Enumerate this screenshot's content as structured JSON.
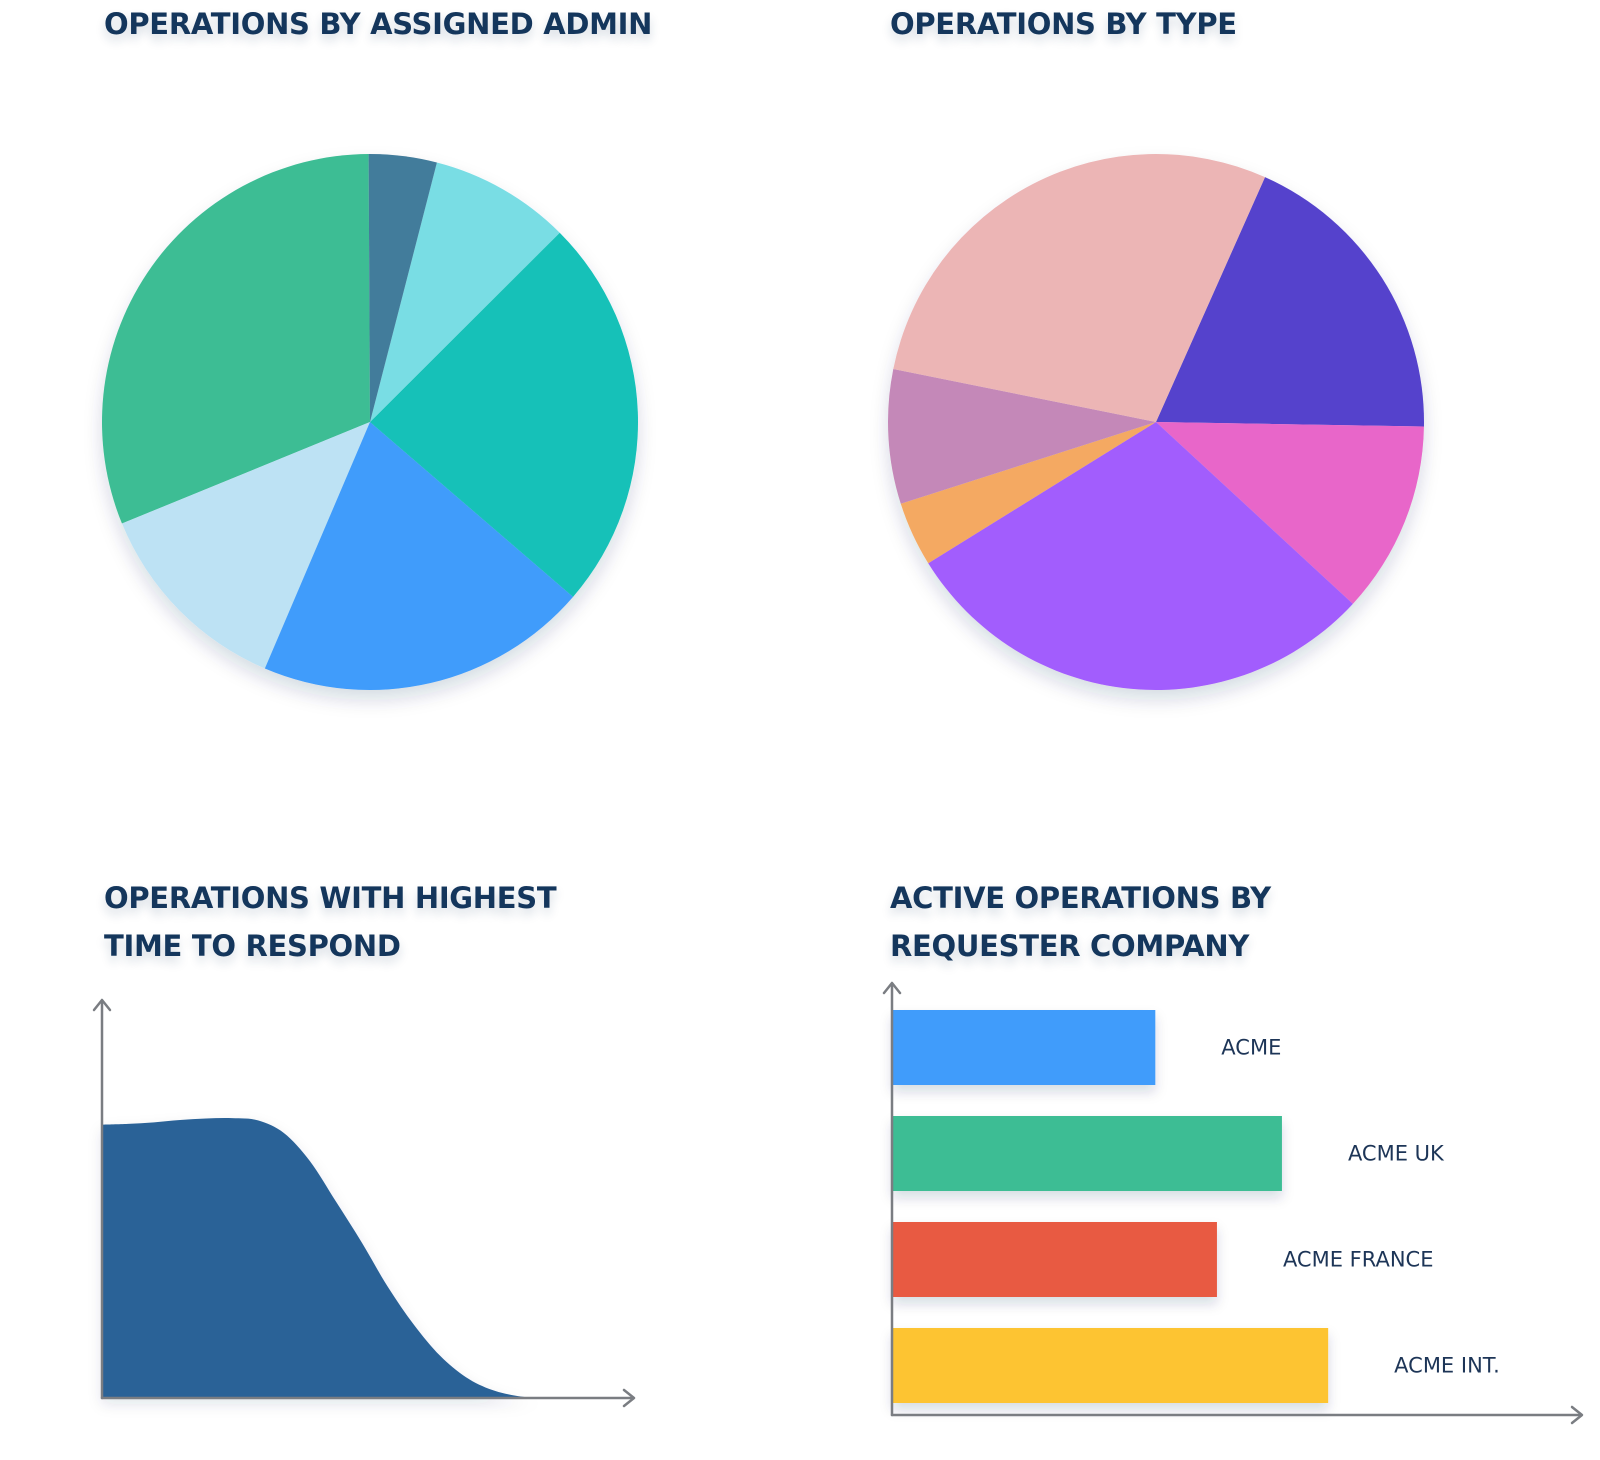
{
  "panels": {
    "admin": {
      "title_lines": [
        "OPERATIONS BY ASSIGNED ADMIN"
      ]
    },
    "type": {
      "title_lines": [
        "OPERATIONS BY TYPE"
      ]
    },
    "time": {
      "title_lines": [
        "OPERATIONS WITH HIGHEST",
        "TIME TO RESPOND"
      ]
    },
    "company": {
      "title_lines": [
        "ACTIVE OPERATIONS BY",
        "REQUESTER COMPANY"
      ]
    }
  },
  "chart_data": [
    {
      "type": "pie",
      "title": "OPERATIONS BY ASSIGNED ADMIN",
      "start_angle_deg": 90.3,
      "direction": "counterclockwise",
      "slices": [
        {
          "value": 31.1,
          "color": "#3dbd94"
        },
        {
          "value": 12.4,
          "color": "#bde2f4"
        },
        {
          "value": 20.1,
          "color": "#3f9cfb"
        },
        {
          "value": 23.8,
          "color": "#12c1b8"
        },
        {
          "value": 8.5,
          "color": "#79dde4"
        },
        {
          "value": 4.1,
          "color": "#437c9b"
        }
      ],
      "legend": "none"
    },
    {
      "type": "pie",
      "title": "OPERATIONS BY TYPE",
      "start_angle_deg": 66.0,
      "direction": "clockwise",
      "slices": [
        {
          "value": 18.6,
          "color": "#5443cc"
        },
        {
          "value": 11.6,
          "color": "#e866c9"
        },
        {
          "value": 29.3,
          "color": "#a25dfd"
        },
        {
          "value": 3.9,
          "color": "#f4a962"
        },
        {
          "value": 8.1,
          "color": "#c488b8"
        },
        {
          "value": 28.5,
          "color": "#ecb5b5"
        }
      ],
      "legend": "none"
    },
    {
      "type": "area",
      "title": "OPERATIONS WITH HIGHEST TIME TO RESPOND",
      "color": "#2a6297",
      "x": [
        0,
        5,
        10,
        15,
        20,
        25,
        30,
        35,
        40,
        45,
        50,
        55,
        60,
        65,
        70,
        75,
        80,
        85,
        90,
        95,
        100
      ],
      "values": [
        71,
        71.2,
        71.6,
        72.2,
        72.6,
        72.7,
        72.1,
        68.8,
        61.5,
        51,
        40.3,
        28.8,
        19,
        11,
        5.4,
        2.1,
        0.5,
        0,
        0,
        0,
        0
      ],
      "xlim": [
        0,
        100
      ],
      "ylim": [
        0,
        100
      ],
      "axis_ticks": "none",
      "grid": false
    },
    {
      "type": "bar",
      "orientation": "horizontal",
      "title": "ACTIVE OPERATIONS BY REQUESTER COMPANY",
      "categories": [
        "ACME",
        "ACME UK",
        "ACME FRANCE",
        "ACME INT."
      ],
      "values": [
        39.3,
        58.2,
        48.5,
        65.1
      ],
      "colors": [
        "#3f9cfb",
        "#3dbd94",
        "#e85a42",
        "#fdc433"
      ],
      "xlim": [
        0,
        100
      ],
      "axis_ticks": "none",
      "grid": false
    }
  ]
}
